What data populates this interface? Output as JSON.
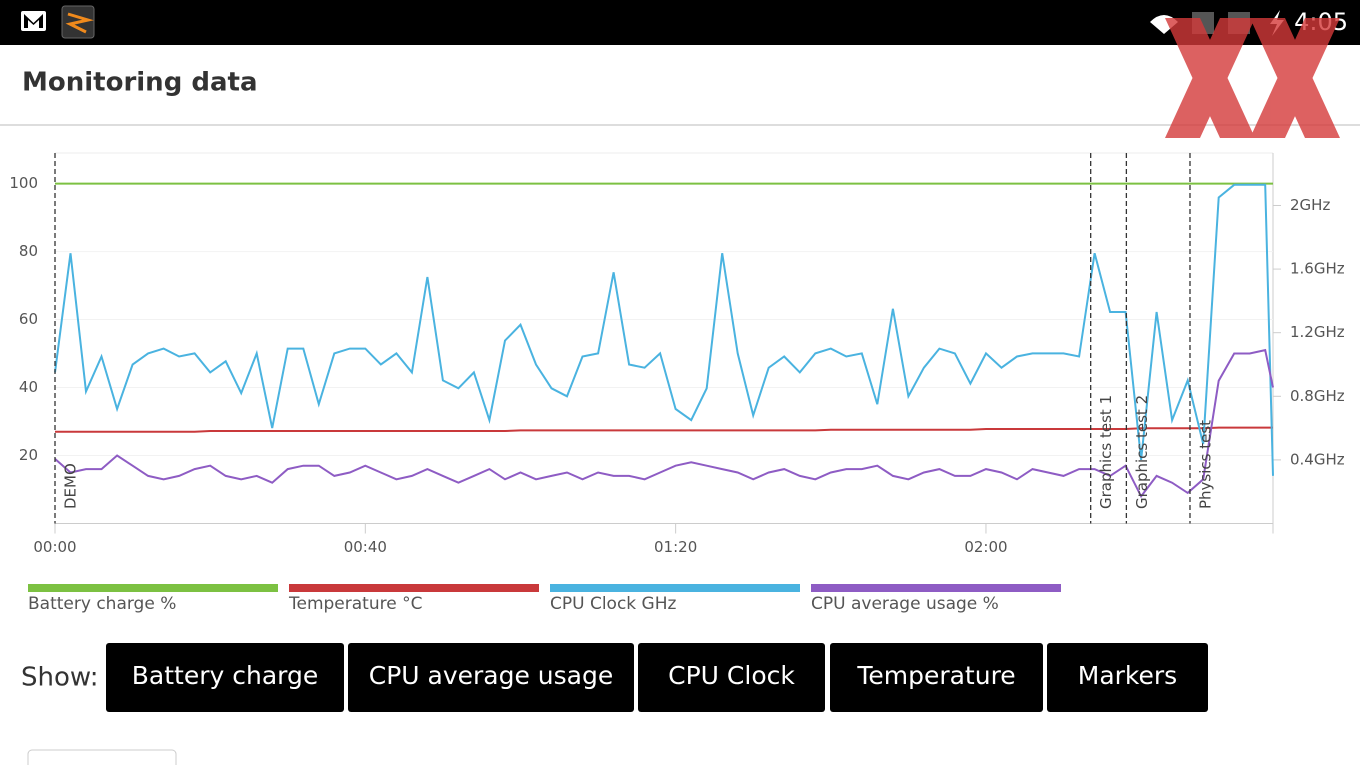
{
  "status_bar": {
    "time": "4:05"
  },
  "header": {
    "title": "Monitoring data"
  },
  "chart_data": {
    "type": "line",
    "x": [
      0,
      2,
      4,
      6,
      8,
      10,
      12,
      14,
      16,
      18,
      20,
      22,
      24,
      26,
      28,
      30,
      32,
      34,
      36,
      38,
      40,
      42,
      44,
      46,
      48,
      50,
      52,
      54,
      56,
      58,
      60,
      62,
      64,
      66,
      68,
      70,
      72,
      74,
      76,
      78,
      80,
      82,
      84,
      86,
      88,
      90,
      92,
      94,
      96,
      98,
      100,
      102,
      104,
      106,
      108,
      110,
      112,
      114,
      116,
      118,
      120,
      122,
      124,
      126,
      128,
      130,
      132,
      134,
      136,
      138,
      140,
      142,
      144,
      146,
      148,
      150,
      152,
      154,
      156,
      157
    ],
    "xlim": [
      0,
      157
    ],
    "xticks": [
      {
        "value": 0,
        "label": "00:00"
      },
      {
        "value": 40,
        "label": "00:40"
      },
      {
        "value": 80,
        "label": "01:20"
      },
      {
        "value": 120,
        "label": "02:00"
      }
    ],
    "ylim": [
      0,
      109
    ],
    "yticks": [
      20,
      40,
      60,
      80,
      100
    ],
    "y2lim": [
      0,
      2.33
    ],
    "y2ticks": [
      {
        "value": 0.4,
        "label": "0.4GHz"
      },
      {
        "value": 0.8,
        "label": "0.8GHz"
      },
      {
        "value": 1.2,
        "label": "1.2GHz"
      },
      {
        "value": 1.6,
        "label": "1.6GHz"
      },
      {
        "value": 2,
        "label": "2GHz"
      }
    ],
    "grid": true,
    "series": [
      {
        "name": "Battery charge %",
        "color": "#7cc142",
        "values": [
          100,
          100,
          100,
          100,
          100,
          100,
          100,
          100,
          100,
          100,
          100,
          100,
          100,
          100,
          100,
          100,
          100,
          100,
          100,
          100,
          100,
          100,
          100,
          100,
          100,
          100,
          100,
          100,
          100,
          100,
          100,
          100,
          100,
          100,
          100,
          100,
          100,
          100,
          100,
          100,
          100,
          100,
          100,
          100,
          100,
          100,
          100,
          100,
          100,
          100,
          100,
          100,
          100,
          100,
          100,
          100,
          100,
          100,
          100,
          100,
          100,
          100,
          100,
          100,
          100,
          100,
          100,
          100,
          100,
          100,
          100,
          100,
          100,
          100,
          100,
          100,
          100,
          100,
          100,
          100
        ]
      },
      {
        "name": "Temperature °C",
        "color": "#c9393b",
        "values": [
          27,
          27,
          27,
          27,
          27,
          27,
          27,
          27,
          27,
          27,
          27.2,
          27.2,
          27.2,
          27.2,
          27.2,
          27.2,
          27.2,
          27.2,
          27.2,
          27.2,
          27.2,
          27.2,
          27.2,
          27.2,
          27.2,
          27.2,
          27.2,
          27.2,
          27.2,
          27.2,
          27.4,
          27.4,
          27.4,
          27.4,
          27.4,
          27.4,
          27.4,
          27.4,
          27.4,
          27.4,
          27.4,
          27.4,
          27.4,
          27.4,
          27.4,
          27.4,
          27.4,
          27.4,
          27.4,
          27.4,
          27.6,
          27.6,
          27.6,
          27.6,
          27.6,
          27.6,
          27.6,
          27.6,
          27.6,
          27.6,
          27.8,
          27.8,
          27.8,
          27.8,
          27.8,
          27.8,
          27.8,
          27.8,
          27.8,
          27.8,
          28,
          28,
          28,
          28,
          28,
          28.2,
          28.2,
          28.2,
          28.2,
          28.2
        ]
      },
      {
        "name": "CPU Clock GHz",
        "color": "#4ab3e0",
        "axis": "y2",
        "values": [
          0.95,
          1.7,
          0.83,
          1.05,
          0.72,
          1,
          1.07,
          1.1,
          1.05,
          1.07,
          0.95,
          1.02,
          0.82,
          1.07,
          0.6,
          1.1,
          1.1,
          0.75,
          1.07,
          1.1,
          1.1,
          1,
          1.07,
          0.95,
          1.55,
          0.9,
          0.85,
          0.95,
          0.65,
          1.15,
          1.25,
          1,
          0.85,
          0.8,
          1.05,
          1.07,
          1.58,
          1,
          0.98,
          1.07,
          0.72,
          0.65,
          0.85,
          1.7,
          1.07,
          0.68,
          0.98,
          1.05,
          0.95,
          1.07,
          1.1,
          1.05,
          1.07,
          0.75,
          1.35,
          0.8,
          0.98,
          1.1,
          1.07,
          0.88,
          1.07,
          0.98,
          1.05,
          1.07,
          1.07,
          1.07,
          1.05,
          1.7,
          1.33,
          1.33,
          0.4,
          1.33,
          0.65,
          0.9,
          0.5,
          2.05,
          2.13,
          2.13,
          2.13,
          0.3
        ]
      },
      {
        "name": "CPU average usage %",
        "color": "#8e5cc4",
        "values": [
          19,
          15,
          16,
          16,
          20,
          17,
          14,
          13,
          14,
          16,
          17,
          14,
          13,
          14,
          12,
          16,
          17,
          17,
          14,
          15,
          17,
          15,
          13,
          14,
          16,
          14,
          12,
          14,
          16,
          13,
          15,
          13,
          14,
          15,
          13,
          15,
          14,
          14,
          13,
          15,
          17,
          18,
          17,
          16,
          15,
          13,
          15,
          16,
          14,
          13,
          15,
          16,
          16,
          17,
          14,
          13,
          15,
          16,
          14,
          14,
          16,
          15,
          13,
          16,
          15,
          14,
          16,
          16,
          14,
          17,
          8,
          14,
          12,
          9,
          13,
          42,
          50,
          50,
          51,
          40
        ]
      }
    ],
    "markers": [
      {
        "x": 0,
        "label": "DEMO"
      },
      {
        "x": 133.5,
        "label": "Graphics test 1"
      },
      {
        "x": 138.1,
        "label": "Graphics test 2"
      },
      {
        "x": 146.3,
        "label": "Physics test"
      }
    ]
  },
  "controls": {
    "label": "Show:",
    "buttons": [
      "Battery charge",
      "CPU average usage",
      "CPU Clock",
      "Temperature",
      "Markers"
    ]
  }
}
